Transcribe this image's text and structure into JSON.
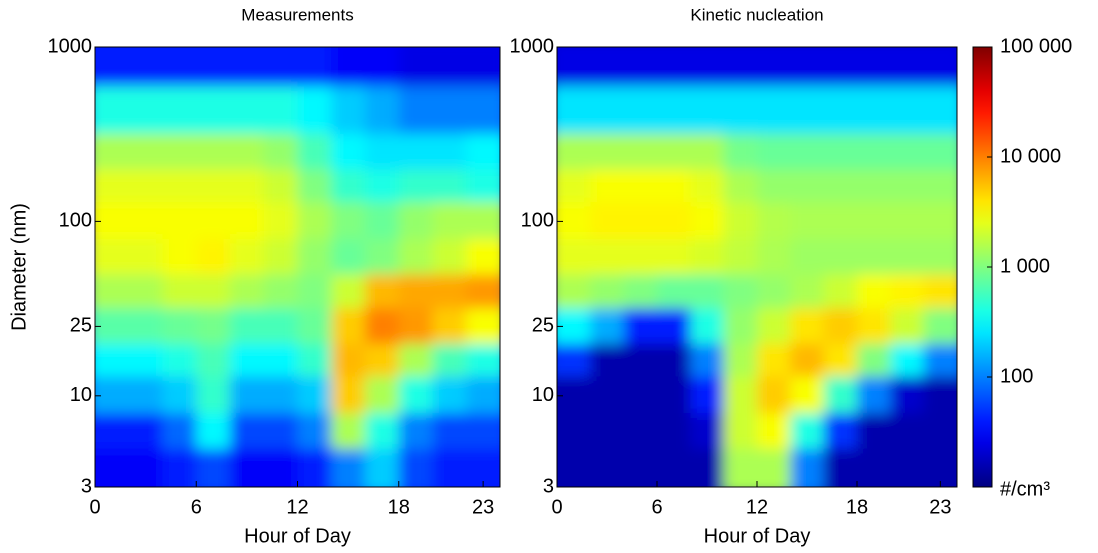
{
  "chart_data": [
    {
      "type": "heatmap",
      "title": "Measurements",
      "xlabel": "Hour of Day",
      "ylabel": "Diameter (nm)",
      "colormap": "jet",
      "zlog": true,
      "zlim": [
        10,
        100000
      ],
      "ylog": true,
      "xlim": [
        0,
        24
      ],
      "ylim": [
        3,
        1000
      ],
      "xticks": [
        0,
        6,
        12,
        18,
        23
      ],
      "yticks": [
        3,
        10,
        25,
        100,
        1000
      ],
      "xbins": [
        0,
        2,
        4,
        6,
        8,
        10,
        12,
        14,
        16,
        18,
        20,
        22,
        24
      ],
      "ybins": [
        3,
        5,
        8,
        13,
        20,
        32,
        50,
        80,
        130,
        200,
        320,
        600,
        1000
      ],
      "z": [
        [
          30,
          30,
          40,
          60,
          30,
          30,
          40,
          100,
          200,
          60,
          40,
          40
        ],
        [
          40,
          40,
          80,
          300,
          60,
          60,
          100,
          1500,
          400,
          100,
          60,
          60
        ],
        [
          150,
          150,
          200,
          500,
          150,
          150,
          200,
          5000,
          1500,
          400,
          200,
          150
        ],
        [
          300,
          300,
          400,
          600,
          300,
          300,
          500,
          6000,
          5000,
          1500,
          600,
          400
        ],
        [
          700,
          700,
          800,
          900,
          600,
          600,
          800,
          5000,
          10000,
          8000,
          5000,
          3000
        ],
        [
          1500,
          1500,
          2000,
          2000,
          1500,
          1200,
          1000,
          2000,
          6000,
          7000,
          7000,
          8000
        ],
        [
          2500,
          2500,
          3000,
          3500,
          2500,
          2000,
          1200,
          800,
          1000,
          1500,
          2000,
          3000
        ],
        [
          3000,
          3000,
          3000,
          3000,
          3000,
          2500,
          1500,
          1000,
          800,
          1200,
          1500,
          1500
        ],
        [
          2500,
          2500,
          2500,
          2500,
          2500,
          2000,
          1000,
          500,
          400,
          500,
          500,
          400
        ],
        [
          1500,
          1500,
          1500,
          1500,
          1500,
          1200,
          600,
          300,
          250,
          250,
          250,
          300
        ],
        [
          400,
          400,
          400,
          400,
          400,
          400,
          300,
          200,
          150,
          100,
          100,
          100
        ],
        [
          40,
          40,
          40,
          40,
          40,
          40,
          40,
          30,
          30,
          25,
          25,
          25
        ]
      ]
    },
    {
      "type": "heatmap",
      "title": "Kinetic nucleation",
      "xlabel": "Hour of Day",
      "colormap": "jet",
      "zlog": true,
      "zlim": [
        10,
        100000
      ],
      "ylog": true,
      "xlim": [
        0,
        24
      ],
      "ylim": [
        3,
        1000
      ],
      "xticks": [
        0,
        6,
        12,
        18,
        23
      ],
      "yticks": [
        3,
        10,
        25,
        100,
        1000
      ],
      "xbins": [
        0,
        2,
        4,
        6,
        8,
        10,
        12,
        14,
        16,
        18,
        20,
        22,
        24
      ],
      "ybins": [
        3,
        5,
        8,
        13,
        20,
        32,
        50,
        80,
        130,
        200,
        320,
        600,
        1000
      ],
      "z": [
        [
          15,
          15,
          15,
          15,
          15,
          1500,
          1500,
          100,
          15,
          15,
          15,
          15
        ],
        [
          15,
          15,
          15,
          15,
          20,
          2000,
          3000,
          400,
          50,
          15,
          15,
          15
        ],
        [
          15,
          15,
          15,
          15,
          40,
          2000,
          5000,
          3000,
          500,
          100,
          20,
          15
        ],
        [
          50,
          15,
          15,
          15,
          100,
          1500,
          4000,
          6000,
          4000,
          1000,
          300,
          100
        ],
        [
          300,
          150,
          40,
          40,
          400,
          1200,
          2000,
          4000,
          5000,
          4000,
          2000,
          1000
        ],
        [
          1500,
          1200,
          1000,
          800,
          800,
          1000,
          1200,
          1500,
          2000,
          3000,
          3500,
          4000
        ],
        [
          2500,
          2500,
          2500,
          2500,
          2200,
          1800,
          1500,
          1300,
          1300,
          1300,
          1300,
          1300
        ],
        [
          3000,
          3500,
          3500,
          3500,
          3000,
          2000,
          1600,
          1500,
          1500,
          1500,
          1500,
          1500
        ],
        [
          2500,
          3000,
          3000,
          3000,
          2500,
          1500,
          1200,
          1200,
          1200,
          1200,
          1200,
          1200
        ],
        [
          1500,
          1500,
          1500,
          1500,
          1500,
          900,
          800,
          800,
          800,
          800,
          800,
          800
        ],
        [
          250,
          250,
          250,
          250,
          250,
          250,
          250,
          250,
          250,
          250,
          250,
          250
        ],
        [
          25,
          25,
          25,
          25,
          25,
          25,
          25,
          25,
          25,
          25,
          25,
          25
        ]
      ],
      "colorbar": {
        "label": "#/cm³",
        "ticks": [
          100,
          {
            "value": 1000,
            "label": "1 000"
          },
          {
            "value": 10000,
            "label": "10 000"
          },
          {
            "value": 100000,
            "label": "100 000"
          }
        ]
      }
    }
  ]
}
